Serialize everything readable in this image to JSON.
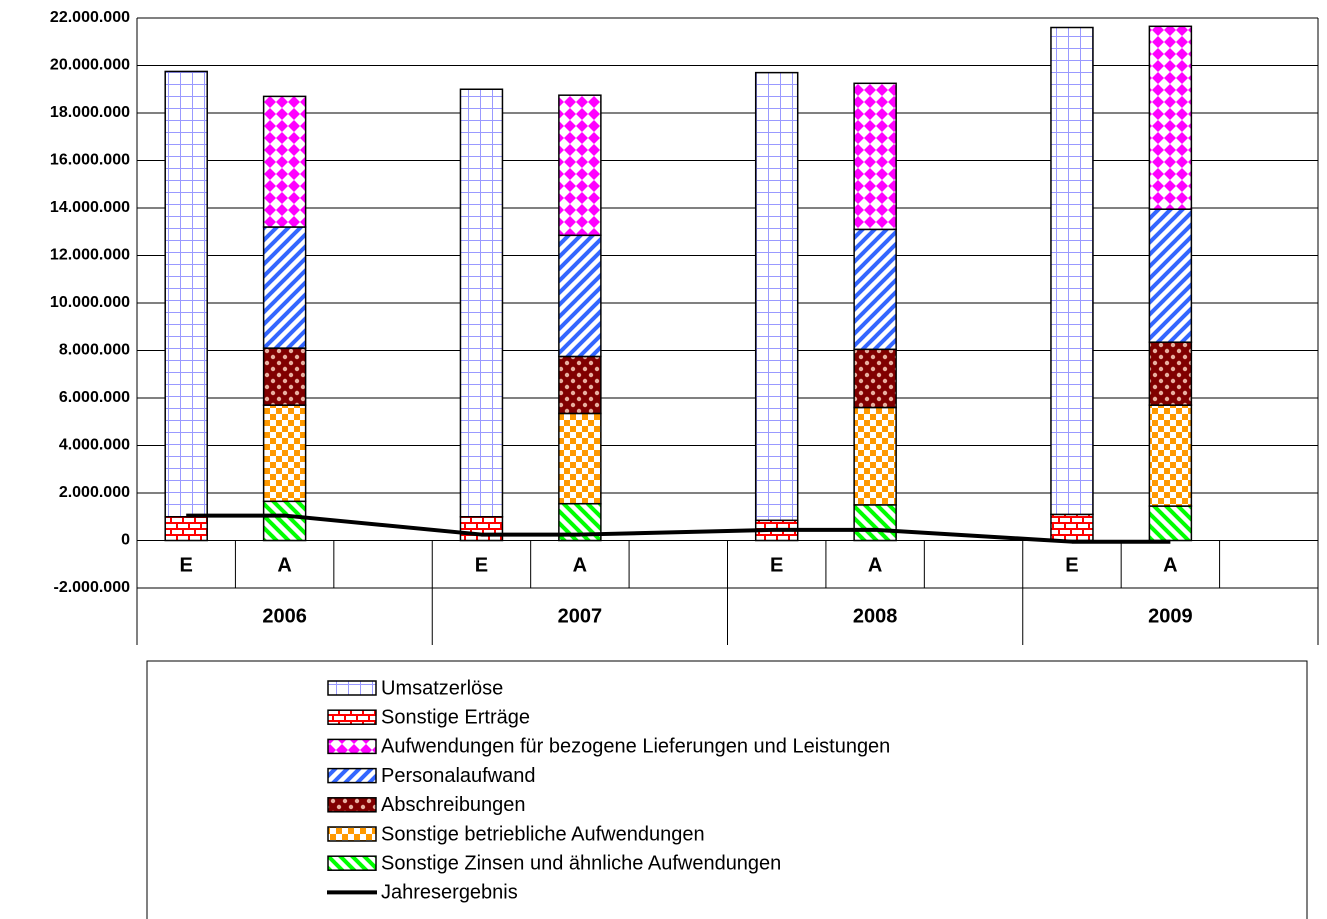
{
  "chart_data": {
    "type": "stacked_bar_line",
    "groups": [
      "2006",
      "2007",
      "2008",
      "2009"
    ],
    "categories": [
      "E",
      "A",
      "E",
      "A",
      "E",
      "A",
      "E",
      "A"
    ],
    "ylim": [
      -2000000,
      22000000
    ],
    "yticks": [
      {
        "value": -2000000,
        "label": "-2.000.000"
      },
      0,
      {
        "value": 2000000,
        "label": "2.000.000"
      },
      {
        "value": 4000000,
        "label": "4.000.000"
      },
      {
        "value": 6000000,
        "label": "6.000.000"
      },
      {
        "value": 8000000,
        "label": "8.000.000"
      },
      {
        "value": 10000000,
        "label": "10.000.000"
      },
      {
        "value": 12000000,
        "label": "12.000.000"
      },
      {
        "value": 14000000,
        "label": "14.000.000"
      },
      {
        "value": 16000000,
        "label": "16.000.000"
      },
      {
        "value": 18000000,
        "label": "18.000.000"
      },
      {
        "value": 20000000,
        "label": "20.000.000"
      },
      {
        "value": 22000000,
        "label": "22.000.000"
      }
    ],
    "grid": true,
    "series": [
      {
        "name": "Umsatzerlöse",
        "color": "#9999ff",
        "pattern": "grid",
        "values": [
          18750000,
          null,
          18000000,
          null,
          18850000,
          null,
          20500000,
          null
        ]
      },
      {
        "name": "Sonstige Erträge",
        "color": "#ff0000",
        "pattern": "brick",
        "values": [
          1000000,
          null,
          1000000,
          null,
          850000,
          null,
          1100000,
          null
        ]
      },
      {
        "name": "Aufwendungen für bezogene Lieferungen und Leistungen",
        "color": "#ff00ff",
        "pattern": "diamond",
        "values": [
          null,
          5500000,
          null,
          5900000,
          null,
          6150000,
          null,
          7700000
        ]
      },
      {
        "name": "Personalaufwand",
        "color": "#3366ff",
        "pattern": "diag-up",
        "values": [
          null,
          5100000,
          null,
          5100000,
          null,
          5050000,
          null,
          5600000
        ]
      },
      {
        "name": "Abschreibungen",
        "color": "#800000",
        "pattern": "dots",
        "values": [
          null,
          2400000,
          null,
          2400000,
          null,
          2450000,
          null,
          2650000
        ]
      },
      {
        "name": "Sonstige betriebliche Aufwendungen",
        "color": "#ff9900",
        "pattern": "checker",
        "values": [
          null,
          4050000,
          null,
          3800000,
          null,
          4100000,
          null,
          4250000
        ]
      },
      {
        "name": "Sonstige Zinsen und ähnliche Aufwendungen",
        "color": "#00ff00",
        "pattern": "diag-down",
        "values": [
          null,
          1650000,
          null,
          1550000,
          null,
          1500000,
          null,
          1450000
        ]
      },
      {
        "name": "Jahresergebnis",
        "color": "#000000",
        "pattern": "line",
        "values": [
          1050000,
          1050000,
          250000,
          250000,
          450000,
          450000,
          -50000,
          -50000
        ]
      }
    ]
  }
}
